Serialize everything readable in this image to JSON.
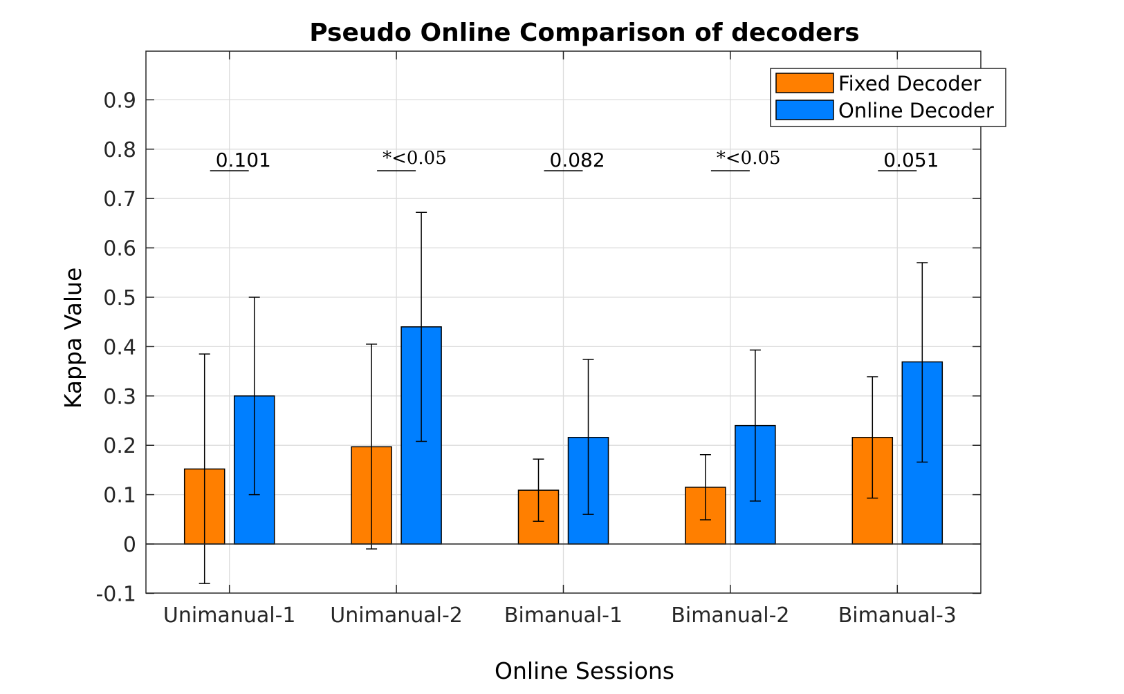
{
  "chart_data": {
    "type": "bar",
    "title": "Pseudo Online Comparison of decoders",
    "xlabel": "Online Sessions",
    "ylabel": "Kappa Value",
    "ylim": [
      -0.1,
      1.0
    ],
    "yticks": [
      -0.1,
      0,
      0.1,
      0.2,
      0.3,
      0.4,
      0.5,
      0.6,
      0.7,
      0.8,
      0.9
    ],
    "ytick_labels": [
      "-0.1",
      "0",
      "0.1",
      "0.2",
      "0.3",
      "0.4",
      "0.5",
      "0.6",
      "0.7",
      "0.8",
      "0.9"
    ],
    "grid": true,
    "legend_position": "upper right",
    "categories": [
      "Unimanual-1",
      "Unimanual-2",
      "Bimanual-1",
      "Bimanual-2",
      "Bimanual-3"
    ],
    "series": [
      {
        "name": "Fixed Decoder",
        "color": "#FF7F00",
        "values": [
          0.152,
          0.197,
          0.109,
          0.115,
          0.216
        ],
        "error_upper": [
          0.385,
          0.405,
          0.172,
          0.181,
          0.339
        ],
        "error_lower": [
          -0.08,
          -0.01,
          0.046,
          0.049,
          0.093
        ]
      },
      {
        "name": "Online Decoder",
        "color": "#007FFF",
        "values": [
          0.3,
          0.44,
          0.216,
          0.24,
          0.369
        ],
        "error_upper": [
          0.5,
          0.672,
          0.374,
          0.393,
          0.57
        ],
        "error_lower": [
          0.1,
          0.208,
          0.06,
          0.087,
          0.166
        ]
      }
    ],
    "annotations": [
      {
        "category": "Unimanual-1",
        "text": "0.101",
        "y": 0.8
      },
      {
        "category": "Unimanual-2",
        "text": "*<0.05",
        "y": 0.8
      },
      {
        "category": "Bimanual-1",
        "text": "0.082",
        "y": 0.8
      },
      {
        "category": "Bimanual-2",
        "text": "*<0.05",
        "y": 0.8
      },
      {
        "category": "Bimanual-3",
        "text": "0.051",
        "y": 0.8
      }
    ]
  }
}
